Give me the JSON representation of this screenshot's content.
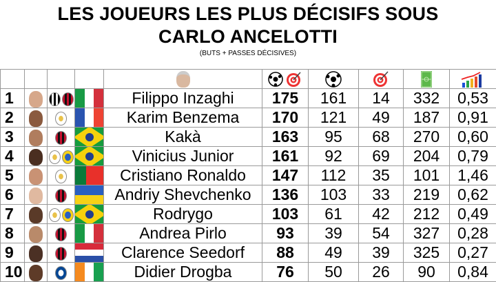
{
  "title_line1": "LES JOUEURS LES PLUS DÉCISIFS SOUS",
  "title_line2": "CARLO ANCELOTTI",
  "subtitle": "(BUTS + PASSES DÉCISIVES)",
  "header_icons": [
    "coach-photo",
    "ball-and-target-icon",
    "ball-icon",
    "target-icon",
    "pitch-icon",
    "growth-chart-icon"
  ],
  "rows": [
    {
      "rank": "1",
      "name": "Filippo Inzaghi",
      "total": "175",
      "goals": "161",
      "assists": "14",
      "matches": "332",
      "ratio": "0,53",
      "clubs": [
        "juventus",
        "milan"
      ],
      "flag": "italy"
    },
    {
      "rank": "2",
      "name": "Karim Benzema",
      "total": "170",
      "goals": "121",
      "assists": "49",
      "matches": "187",
      "ratio": "0,91",
      "clubs": [
        "real-madrid"
      ],
      "flag": "france"
    },
    {
      "rank": "3",
      "name": "Kakà",
      "total": "163",
      "goals": "95",
      "assists": "68",
      "matches": "270",
      "ratio": "0,60",
      "clubs": [
        "milan"
      ],
      "flag": "brazil"
    },
    {
      "rank": "4",
      "name": "Vinicius Junior",
      "total": "161",
      "goals": "92",
      "assists": "69",
      "matches": "204",
      "ratio": "0,79",
      "clubs": [
        "real-madrid",
        "brazil"
      ],
      "flag": "brazil"
    },
    {
      "rank": "5",
      "name": "Cristiano Ronaldo",
      "total": "147",
      "goals": "112",
      "assists": "35",
      "matches": "101",
      "ratio": "1,46",
      "clubs": [
        "real-madrid"
      ],
      "flag": "portugal"
    },
    {
      "rank": "6",
      "name": "Andriy Shevchenko",
      "total": "136",
      "goals": "103",
      "assists": "33",
      "matches": "219",
      "ratio": "0,62",
      "clubs": [
        "milan"
      ],
      "flag": "ukraine"
    },
    {
      "rank": "7",
      "name": "Rodrygo",
      "total": "103",
      "goals": "61",
      "assists": "42",
      "matches": "212",
      "ratio": "0,49",
      "clubs": [
        "real-madrid",
        "brazil"
      ],
      "flag": "brazil"
    },
    {
      "rank": "8",
      "name": "Andrea Pirlo",
      "total": "93",
      "goals": "39",
      "assists": "54",
      "matches": "327",
      "ratio": "0,28",
      "clubs": [
        "milan"
      ],
      "flag": "italy"
    },
    {
      "rank": "9",
      "name": "Clarence Seedorf",
      "total": "88",
      "goals": "49",
      "assists": "39",
      "matches": "325",
      "ratio": "0,27",
      "clubs": [
        "milan"
      ],
      "flag": "netherlands"
    },
    {
      "rank": "10",
      "name": "Didier Drogba",
      "total": "76",
      "goals": "50",
      "assists": "26",
      "matches": "90",
      "ratio": "0,84",
      "clubs": [
        "chelsea"
      ],
      "flag": "ivory-coast"
    }
  ]
}
